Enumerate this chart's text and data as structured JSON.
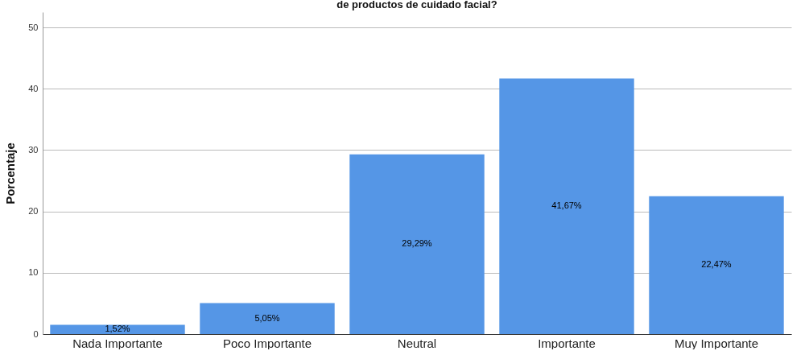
{
  "chart_data": {
    "type": "bar",
    "title": "de productos de cuidado facial?",
    "ylabel": "Porcentaje",
    "categories": [
      "Nada Importante",
      "Poco Importante",
      "Neutral",
      "Importante",
      "Muy Importante"
    ],
    "values": [
      1.52,
      5.05,
      29.29,
      41.67,
      22.47
    ],
    "value_labels": [
      "1,52%",
      "5,05%",
      "29,29%",
      "41,67%",
      "22,47%"
    ],
    "color": "#5596e6",
    "ylim": [
      0,
      52.5
    ],
    "yticks": [
      0,
      10,
      20,
      30,
      40,
      50
    ],
    "grid": "y"
  }
}
